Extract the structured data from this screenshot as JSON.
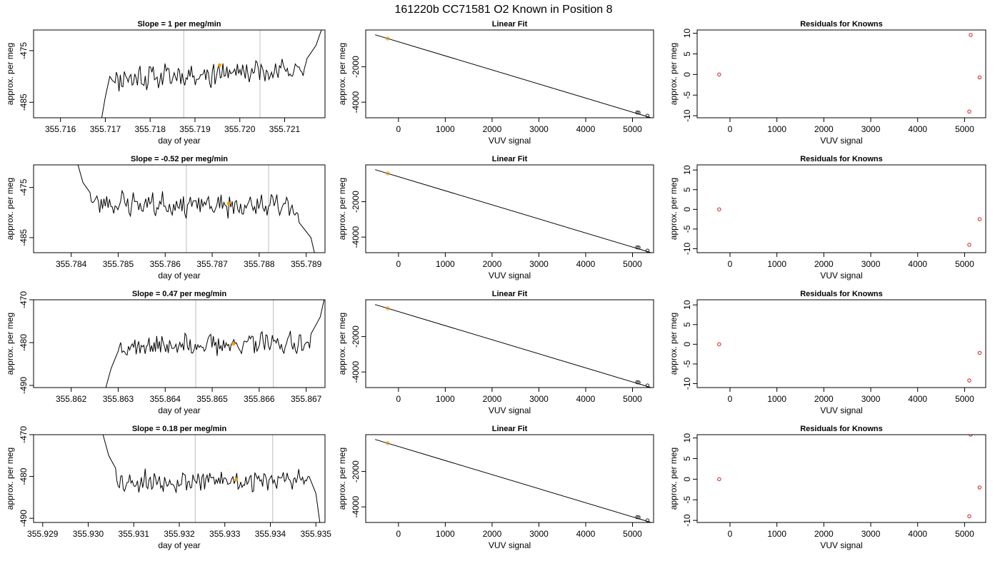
{
  "page": {
    "title": "161220b     CC71581   O2 Known in Position  8"
  },
  "colors": {
    "signal": "#000000",
    "window_lines": "#c8c8c8",
    "marker_orange": "#ff9900",
    "marker_red": "#d01c1c",
    "marker_dark": "#202020"
  },
  "chart_data": [
    {
      "type": "line",
      "panel": "slope",
      "row": 1,
      "title": "Slope =  1  per meg/min",
      "xlabel": "day of year",
      "ylabel": "approx. per meg",
      "xlim": [
        355.7154,
        355.7219
      ],
      "ylim": [
        -488,
        -471
      ],
      "xticks": [
        355.716,
        355.717,
        355.718,
        355.719,
        355.72,
        355.721
      ],
      "xticklabels": [
        "355.716",
        "355.717",
        "355.718",
        "355.719",
        "355.720",
        "355.721"
      ],
      "yticks": [
        -475,
        -485
      ],
      "yticklabels": [
        "-475",
        "-485"
      ],
      "signal": {
        "x_start": 355.7169,
        "x_end": 355.7219,
        "pre": [
          [
            355.7169,
            -489
          ],
          [
            355.717,
            -484
          ],
          [
            355.7171,
            -480
          ]
        ],
        "band_center": -479.5,
        "band_amp": 2.2,
        "trend": 1.0,
        "post": [
          [
            355.7215,
            -476.5
          ],
          [
            355.7217,
            -474
          ],
          [
            355.7218,
            -471.5
          ],
          [
            355.7219,
            -469
          ]
        ],
        "seed": 11
      },
      "window_lines": [
        355.71875,
        355.72045
      ],
      "marker": [
        355.71955,
        -477.8
      ]
    },
    {
      "type": "scatter",
      "panel": "fit",
      "row": 1,
      "title": "Linear Fit",
      "xlabel": "VUV signal",
      "ylabel": "approx. per meg",
      "xlim": [
        -700,
        5450
      ],
      "ylim": [
        -4880,
        80
      ],
      "xticks": [
        0,
        1000,
        2000,
        3000,
        4000,
        5000
      ],
      "xticklabels": [
        "0",
        "1000",
        "2000",
        "3000",
        "4000",
        "5000"
      ],
      "yticks": [
        -2000,
        -4000
      ],
      "yticklabels": [
        "-2000",
        "-4000"
      ],
      "line": [
        [
          -500,
          -190
        ],
        [
          5450,
          -4920
        ]
      ],
      "points": [
        {
          "x": -230,
          "y": -400,
          "style": "orange"
        },
        {
          "x": 5100,
          "y": -4580,
          "style": "dark"
        },
        {
          "x": 5130,
          "y": -4590,
          "style": "dark"
        },
        {
          "x": 5320,
          "y": -4760,
          "style": "dark"
        }
      ]
    },
    {
      "type": "scatter",
      "panel": "residuals",
      "row": 1,
      "title": "Residuals for Knowns",
      "xlabel": "VUV signal",
      "ylabel": "approx. per meg",
      "xlim": [
        -700,
        5450
      ],
      "ylim": [
        -10.5,
        10.8
      ],
      "xticks": [
        0,
        1000,
        2000,
        3000,
        4000,
        5000
      ],
      "xticklabels": [
        "0",
        "1000",
        "2000",
        "3000",
        "4000",
        "5000"
      ],
      "yticks": [
        10,
        5,
        0,
        -5,
        -10
      ],
      "yticklabels": [
        "10",
        "5",
        "0",
        "-5",
        "-10"
      ],
      "points": [
        {
          "x": -230,
          "y": 0.0,
          "style": "red"
        },
        {
          "x": 5130,
          "y": 9.6,
          "style": "red"
        },
        {
          "x": 5320,
          "y": -0.7,
          "style": "red"
        },
        {
          "x": 5100,
          "y": -9.0,
          "style": "red"
        }
      ]
    },
    {
      "type": "line",
      "panel": "slope",
      "row": 2,
      "title": "Slope =  -0.52  per meg/min",
      "xlabel": "day of year",
      "ylabel": "approx. per meg",
      "xlim": [
        355.7832,
        355.7894
      ],
      "ylim": [
        -488,
        -470.5
      ],
      "xticks": [
        355.784,
        355.785,
        355.786,
        355.787,
        355.788,
        355.789
      ],
      "xticklabels": [
        "355.784",
        "355.785",
        "355.786",
        "355.787",
        "355.788",
        "355.789"
      ],
      "yticks": [
        -475,
        -485
      ],
      "yticklabels": [
        "-475",
        "-485"
      ],
      "signal": {
        "x_start": 355.7841,
        "x_end": 355.7892,
        "pre": [
          [
            355.7841,
            -469
          ],
          [
            355.78425,
            -474
          ],
          [
            355.7844,
            -476
          ]
        ],
        "band_center": -478.5,
        "band_amp": 2.3,
        "trend": -0.5,
        "post": [
          [
            355.78885,
            -482
          ],
          [
            355.7891,
            -485
          ],
          [
            355.7892,
            -489
          ]
        ],
        "seed": 23
      },
      "window_lines": [
        355.78645,
        355.7882
      ],
      "marker": [
        355.78735,
        -478.2
      ]
    },
    {
      "type": "scatter",
      "panel": "fit",
      "row": 2,
      "title": "Linear Fit",
      "xlabel": "VUV signal",
      "ylabel": "approx. per meg",
      "xlim": [
        -700,
        5450
      ],
      "ylim": [
        -4880,
        80
      ],
      "xticks": [
        0,
        1000,
        2000,
        3000,
        4000,
        5000
      ],
      "xticklabels": [
        "0",
        "1000",
        "2000",
        "3000",
        "4000",
        "5000"
      ],
      "yticks": [
        -2000,
        -4000
      ],
      "yticklabels": [
        "-2000",
        "-4000"
      ],
      "line": [
        [
          -500,
          -190
        ],
        [
          5450,
          -4920
        ]
      ],
      "points": [
        {
          "x": -230,
          "y": -400,
          "style": "orange"
        },
        {
          "x": 5100,
          "y": -4580,
          "style": "dark"
        },
        {
          "x": 5130,
          "y": -4590,
          "style": "dark"
        },
        {
          "x": 5320,
          "y": -4760,
          "style": "dark"
        }
      ]
    },
    {
      "type": "scatter",
      "panel": "residuals",
      "row": 2,
      "title": "Residuals for Knowns",
      "xlabel": "VUV signal",
      "ylabel": "approx. per meg",
      "xlim": [
        -700,
        5450
      ],
      "ylim": [
        -11,
        11.3
      ],
      "xticks": [
        0,
        1000,
        2000,
        3000,
        4000,
        5000
      ],
      "xticklabels": [
        "0",
        "1000",
        "2000",
        "3000",
        "4000",
        "5000"
      ],
      "yticks": [
        10,
        5,
        0,
        -5,
        -10
      ],
      "yticklabels": [
        "10",
        "5",
        "0",
        "-5",
        "-10"
      ],
      "points": [
        {
          "x": -230,
          "y": 0.0,
          "style": "red"
        },
        {
          "x": 5320,
          "y": -2.5,
          "style": "red"
        },
        {
          "x": 5100,
          "y": -9.0,
          "style": "red"
        }
      ]
    },
    {
      "type": "line",
      "panel": "slope",
      "row": 3,
      "title": "Slope =  0.47  per meg/min",
      "xlabel": "day of year",
      "ylabel": "approx. per meg",
      "xlim": [
        355.8612,
        355.8674
      ],
      "ylim": [
        -490.5,
        -470
      ],
      "xticks": [
        355.862,
        355.863,
        355.864,
        355.865,
        355.866,
        355.867
      ],
      "xticklabels": [
        "355.862",
        "355.863",
        "355.864",
        "355.865",
        "355.866",
        "355.867"
      ],
      "yticks": [
        -470,
        -480,
        -490
      ],
      "yticklabels": [
        "-470",
        "-480",
        "-490"
      ],
      "signal": {
        "x_start": 355.8627,
        "x_end": 355.8674,
        "pre": [
          [
            355.8627,
            -492
          ],
          [
            355.86285,
            -486
          ],
          [
            355.863,
            -482
          ]
        ],
        "band_center": -480.5,
        "band_amp": 2.4,
        "trend": 0.5,
        "post": [
          [
            355.8671,
            -478
          ],
          [
            355.8673,
            -474
          ],
          [
            355.8674,
            -469
          ]
        ],
        "seed": 37
      },
      "window_lines": [
        355.86465,
        355.8663
      ],
      "marker": [
        355.86545,
        -480.3
      ]
    },
    {
      "type": "scatter",
      "panel": "fit",
      "row": 3,
      "title": "Linear Fit",
      "xlabel": "VUV signal",
      "ylabel": "approx. per meg",
      "xlim": [
        -700,
        5450
      ],
      "ylim": [
        -4880,
        80
      ],
      "xticks": [
        0,
        1000,
        2000,
        3000,
        4000,
        5000
      ],
      "xticklabels": [
        "0",
        "1000",
        "2000",
        "3000",
        "4000",
        "5000"
      ],
      "yticks": [
        -2000,
        -4000
      ],
      "yticklabels": [
        "-2000",
        "-4000"
      ],
      "line": [
        [
          -500,
          -190
        ],
        [
          5450,
          -4920
        ]
      ],
      "points": [
        {
          "x": -230,
          "y": -400,
          "style": "orange"
        },
        {
          "x": 5100,
          "y": -4580,
          "style": "dark"
        },
        {
          "x": 5130,
          "y": -4590,
          "style": "dark"
        },
        {
          "x": 5320,
          "y": -4760,
          "style": "dark"
        }
      ]
    },
    {
      "type": "scatter",
      "panel": "residuals",
      "row": 3,
      "title": "Residuals for Knowns",
      "xlabel": "VUV signal",
      "ylabel": "approx. per meg",
      "xlim": [
        -700,
        5450
      ],
      "ylim": [
        -11,
        11.3
      ],
      "xticks": [
        0,
        1000,
        2000,
        3000,
        4000,
        5000
      ],
      "xticklabels": [
        "0",
        "1000",
        "2000",
        "3000",
        "4000",
        "5000"
      ],
      "yticks": [
        10,
        5,
        0,
        -5,
        -10
      ],
      "yticklabels": [
        "10",
        "5",
        "0",
        "-5",
        "-10"
      ],
      "points": [
        {
          "x": -230,
          "y": 0.0,
          "style": "red"
        },
        {
          "x": 5320,
          "y": -2.2,
          "style": "red"
        },
        {
          "x": 5100,
          "y": -9.2,
          "style": "red"
        }
      ]
    },
    {
      "type": "line",
      "panel": "slope",
      "row": 4,
      "title": "Slope =  0.18  per meg/min",
      "xlabel": "day of year",
      "ylabel": "approx. per meg",
      "xlim": [
        355.9288,
        355.9352
      ],
      "ylim": [
        -491,
        -470
      ],
      "xticks": [
        355.929,
        355.93,
        355.931,
        355.932,
        355.933,
        355.934,
        355.935
      ],
      "xticklabels": [
        "355.929",
        "355.930",
        "355.931",
        "355.932",
        "355.933",
        "355.934",
        "355.935"
      ],
      "yticks": [
        -470,
        -480,
        -490
      ],
      "yticklabels": [
        "-470",
        "-480",
        "-490"
      ],
      "signal": {
        "x_start": 355.9303,
        "x_end": 355.9351,
        "pre": [
          [
            355.9303,
            -469
          ],
          [
            355.93045,
            -475
          ],
          [
            355.9306,
            -478
          ]
        ],
        "band_center": -481,
        "band_amp": 2.4,
        "trend": 0.2,
        "post": [
          [
            355.93485,
            -480
          ],
          [
            355.935,
            -484
          ],
          [
            355.9351,
            -492
          ]
        ],
        "seed": 53
      },
      "window_lines": [
        355.93235,
        355.93405
      ],
      "marker": [
        355.93325,
        -480.8
      ]
    },
    {
      "type": "scatter",
      "panel": "fit",
      "row": 4,
      "title": "Linear Fit",
      "xlabel": "VUV signal",
      "ylabel": "approx. per meg",
      "xlim": [
        -700,
        5450
      ],
      "ylim": [
        -4880,
        80
      ],
      "xticks": [
        0,
        1000,
        2000,
        3000,
        4000,
        5000
      ],
      "xticklabels": [
        "0",
        "1000",
        "2000",
        "3000",
        "4000",
        "5000"
      ],
      "yticks": [
        -2000,
        -4000
      ],
      "yticklabels": [
        "-2000",
        "-4000"
      ],
      "line": [
        [
          -500,
          -190
        ],
        [
          5450,
          -4920
        ]
      ],
      "points": [
        {
          "x": -230,
          "y": -400,
          "style": "orange"
        },
        {
          "x": 5100,
          "y": -4580,
          "style": "dark"
        },
        {
          "x": 5130,
          "y": -4590,
          "style": "dark"
        },
        {
          "x": 5320,
          "y": -4760,
          "style": "dark"
        }
      ]
    },
    {
      "type": "scatter",
      "panel": "residuals",
      "row": 4,
      "title": "Residuals for Knowns",
      "xlabel": "VUV signal",
      "ylabel": "approx. per meg",
      "xlim": [
        -700,
        5450
      ],
      "ylim": [
        -10.5,
        10.8
      ],
      "xticks": [
        0,
        1000,
        2000,
        3000,
        4000,
        5000
      ],
      "xticklabels": [
        "0",
        "1000",
        "2000",
        "3000",
        "4000",
        "5000"
      ],
      "yticks": [
        10,
        5,
        0,
        -5,
        -10
      ],
      "yticklabels": [
        "10",
        "5",
        "0",
        "-5",
        "-10"
      ],
      "points": [
        {
          "x": -230,
          "y": 0.0,
          "style": "red"
        },
        {
          "x": 5130,
          "y": 10.8,
          "style": "red"
        },
        {
          "x": 5320,
          "y": -2.0,
          "style": "red"
        },
        {
          "x": 5100,
          "y": -9.0,
          "style": "red"
        }
      ]
    }
  ]
}
